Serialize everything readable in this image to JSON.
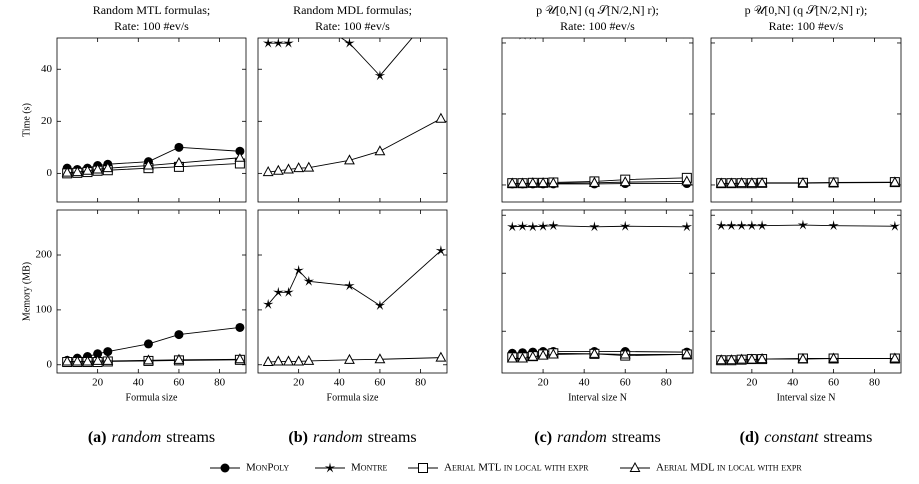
{
  "chart_data": [
    {
      "type": "line",
      "title": [
        "Random MTL formulas;",
        "Rate: 100 #ev/s"
      ],
      "ylabel": "Time (s)",
      "x": [
        5,
        10,
        15,
        20,
        25,
        45,
        60,
        90
      ],
      "xlim": [
        0,
        93
      ],
      "xticks": [
        20,
        40,
        60,
        80
      ],
      "ylim": [
        -11,
        52
      ],
      "yticks": [
        0,
        20,
        40
      ],
      "series": [
        {
          "name": "MonPoly",
          "marker": "circle",
          "color": "#000000",
          "values": [
            2,
            1.5,
            2,
            3,
            3.5,
            4.5,
            10,
            8.5
          ]
        },
        {
          "name": "Aerial MTL in local with expr",
          "marker": "square",
          "color": "#000000",
          "values": [
            0,
            0.2,
            0.5,
            1,
            1.2,
            2,
            2.5,
            3.8
          ]
        },
        {
          "name": "Aerial MDL in local with expr",
          "marker": "triangle",
          "color": "#000000",
          "values": [
            0.3,
            0.5,
            1,
            1.5,
            2,
            3,
            4,
            6
          ]
        }
      ]
    },
    {
      "type": "line",
      "title": [
        "Random MDL formulas;",
        "Rate: 100 #ev/s"
      ],
      "x": [
        5,
        10,
        15,
        20,
        25,
        45,
        60,
        90
      ],
      "xlim": [
        0,
        93
      ],
      "xticks": [
        20,
        40,
        60,
        80
      ],
      "ylim": [
        -11,
        52
      ],
      "yticks": [
        0,
        20,
        40
      ],
      "series": [
        {
          "name": "Montre",
          "marker": "star",
          "color": "#000000",
          "values": [
            50,
            50,
            50,
            75,
            60,
            50,
            37.5,
            65
          ]
        },
        {
          "name": "Aerial MDL in local with expr",
          "marker": "triangle",
          "color": "#000000",
          "values": [
            0.5,
            1,
            1.5,
            2,
            2.2,
            5,
            8.5,
            21
          ]
        }
      ]
    },
    {
      "type": "line",
      "title": [
        "p 𝒰[0,N] (q 𝒮[N/2,N] r);",
        "Rate: 100 #ev/s"
      ],
      "x": [
        5,
        10,
        15,
        20,
        25,
        45,
        60,
        90
      ],
      "xlim": [
        0,
        93
      ],
      "xticks": [
        20,
        40,
        60,
        80
      ],
      "ylim": [
        -0.48,
        4.14
      ],
      "yticks": [
        0,
        2,
        4
      ],
      "series": [
        {
          "name": "MonPoly",
          "marker": "circle",
          "color": "#000000",
          "values": [
            0.03,
            0.03,
            0.03,
            0.03,
            0.03,
            0.03,
            0.04,
            0.04
          ]
        },
        {
          "name": "Montre",
          "marker": "star",
          "color": "#000000",
          "values": [
            4.25,
            4.22,
            4.22,
            4.25,
            4.3,
            4.27,
            4.28,
            4.25
          ]
        },
        {
          "name": "Aerial MTL in local with expr",
          "marker": "square",
          "color": "#000000",
          "values": [
            0.05,
            0.05,
            0.06,
            0.06,
            0.07,
            0.1,
            0.15,
            0.2
          ]
        },
        {
          "name": "Aerial MDL in local with expr",
          "marker": "triangle",
          "color": "#000000",
          "values": [
            0.04,
            0.04,
            0.05,
            0.05,
            0.05,
            0.06,
            0.08,
            0.1
          ]
        }
      ]
    },
    {
      "type": "line",
      "title": [
        "p 𝒰[0,N] (q 𝒮[N/2,N] r);",
        "Rate: 100 #ev/s"
      ],
      "x": [
        5,
        10,
        15,
        20,
        25,
        45,
        60,
        90
      ],
      "xlim": [
        0,
        93
      ],
      "xticks": [
        20,
        40,
        60,
        80
      ],
      "ylim": [
        -0.48,
        4.14
      ],
      "yticks": [
        0,
        2,
        4
      ],
      "series": [
        {
          "name": "Montre",
          "marker": "star",
          "color": "#000000",
          "values": [
            4.27,
            4.27,
            4.27,
            4.27,
            4.27,
            4.27,
            4.27,
            4.27
          ]
        },
        {
          "name": "Aerial MTL in local with expr",
          "marker": "square",
          "color": "#000000",
          "values": [
            0.05,
            0.05,
            0.05,
            0.05,
            0.06,
            0.06,
            0.07,
            0.08
          ]
        },
        {
          "name": "Aerial MDL in local with expr",
          "marker": "triangle",
          "color": "#000000",
          "values": [
            0.04,
            0.04,
            0.05,
            0.05,
            0.05,
            0.05,
            0.06,
            0.07
          ]
        }
      ]
    },
    {
      "type": "line",
      "ylabel": "Memory (MB)",
      "xlabel": "Formula size",
      "x": [
        5,
        10,
        15,
        20,
        25,
        45,
        60,
        90
      ],
      "xlim": [
        0,
        93
      ],
      "xticks": [
        20,
        40,
        60,
        80
      ],
      "ylim": [
        -15,
        282
      ],
      "yticks": [
        0,
        100,
        200
      ],
      "series": [
        {
          "name": "MonPoly",
          "marker": "circle",
          "color": "#000000",
          "values": [
            8,
            12,
            15,
            20,
            24,
            38,
            55,
            68
          ]
        },
        {
          "name": "Aerial MTL in local with expr",
          "marker": "square",
          "color": "#000000",
          "values": [
            5,
            5,
            5,
            5,
            6,
            7,
            8,
            9
          ]
        },
        {
          "name": "Aerial MDL in local with expr",
          "marker": "triangle",
          "color": "#000000",
          "values": [
            6,
            6,
            6,
            7,
            7,
            8,
            9,
            10
          ]
        }
      ]
    },
    {
      "type": "line",
      "xlabel": "Formula size",
      "x": [
        5,
        10,
        15,
        20,
        25,
        45,
        60,
        90
      ],
      "xlim": [
        0,
        93
      ],
      "xticks": [
        20,
        40,
        60,
        80
      ],
      "ylim": [
        -15,
        282
      ],
      "yticks": [
        0,
        100,
        200
      ],
      "series": [
        {
          "name": "Montre",
          "marker": "star",
          "color": "#000000",
          "values": [
            110,
            132,
            132,
            172,
            152,
            144,
            108,
            208
          ]
        },
        {
          "name": "Aerial MDL in local with expr",
          "marker": "triangle",
          "color": "#000000",
          "values": [
            5,
            6,
            6,
            6,
            7,
            9,
            10,
            13
          ]
        }
      ]
    },
    {
      "type": "line",
      "xlabel": "Interval size N",
      "x": [
        5,
        10,
        15,
        20,
        25,
        45,
        60,
        90
      ],
      "xlim": [
        0,
        93
      ],
      "xticks": [
        20,
        40,
        60,
        80
      ],
      "ylim": [
        2.8,
        30.9
      ],
      "yticks": [
        10,
        20,
        30
      ],
      "series": [
        {
          "name": "MonPoly",
          "marker": "circle",
          "color": "#000000",
          "values": [
            6.2,
            6.3,
            6.4,
            6.5,
            6.5,
            6.5,
            6.5,
            6.4
          ]
        },
        {
          "name": "Montre",
          "marker": "star",
          "color": "#000000",
          "values": [
            28,
            28.1,
            28,
            28.1,
            28.2,
            28,
            28.1,
            28
          ]
        },
        {
          "name": "Aerial MTL in local with expr",
          "marker": "square",
          "color": "#000000",
          "values": [
            5.5,
            5.5,
            5.7,
            6,
            6.2,
            6.1,
            5.8,
            6
          ]
        },
        {
          "name": "Aerial MDL in local with expr",
          "marker": "triangle",
          "color": "#000000",
          "values": [
            5.3,
            5.3,
            5.6,
            5.8,
            6,
            6.1,
            6,
            6
          ]
        }
      ]
    },
    {
      "type": "line",
      "xlabel": "Interval size N",
      "x": [
        5,
        10,
        15,
        20,
        25,
        45,
        60,
        90
      ],
      "xlim": [
        0,
        93
      ],
      "xticks": [
        20,
        40,
        60,
        80
      ],
      "ylim": [
        2.8,
        30.9
      ],
      "yticks": [
        10,
        20,
        30
      ],
      "series": [
        {
          "name": "Montre",
          "marker": "star",
          "color": "#000000",
          "values": [
            28.2,
            28.2,
            28.2,
            28.2,
            28.2,
            28.3,
            28.2,
            28.1
          ]
        },
        {
          "name": "Aerial MTL in local with expr",
          "marker": "square",
          "color": "#000000",
          "values": [
            5,
            5,
            5.1,
            5.2,
            5.2,
            5.3,
            5.3,
            5.3
          ]
        },
        {
          "name": "Aerial MDL in local with expr",
          "marker": "triangle",
          "color": "#000000",
          "values": [
            5,
            5,
            5.1,
            5.1,
            5.2,
            5.2,
            5.3,
            5.3
          ]
        }
      ]
    }
  ],
  "captions": [
    {
      "label": "(a)",
      "emph": "random",
      "rest": "streams"
    },
    {
      "label": "(b)",
      "emph": "random",
      "rest": "streams"
    },
    {
      "label": "(c)",
      "emph": "random",
      "rest": "streams"
    },
    {
      "label": "(d)",
      "emph": "constant",
      "rest": "streams"
    }
  ],
  "legend": [
    {
      "name": "MonPoly",
      "marker": "circle"
    },
    {
      "name": "Montre",
      "marker": "star"
    },
    {
      "name": "Aerial MTL in local with expr",
      "marker": "square"
    },
    {
      "name": "Aerial MDL in local with expr",
      "marker": "triangle"
    }
  ]
}
